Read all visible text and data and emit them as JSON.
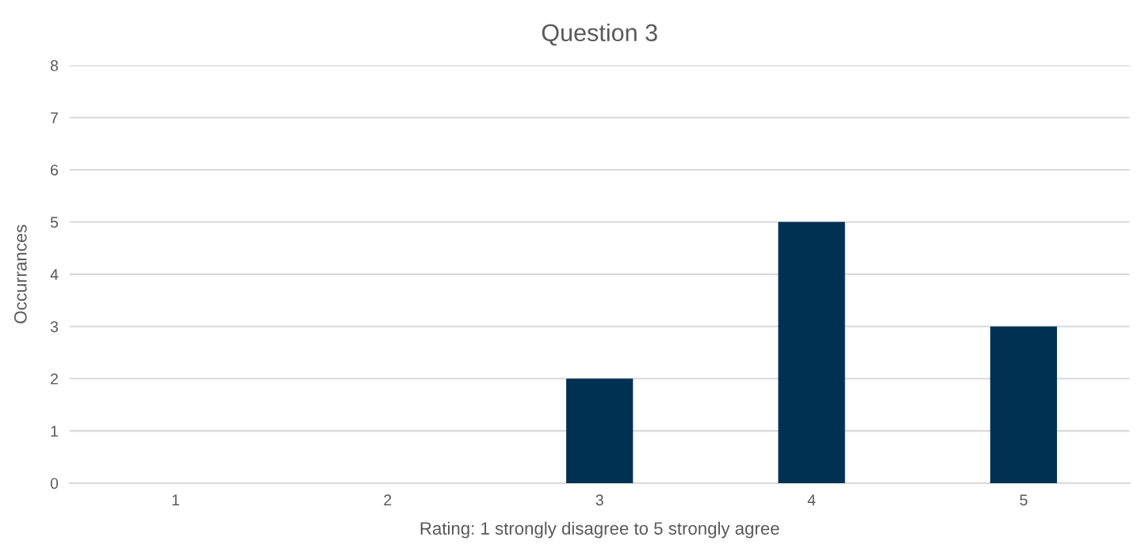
{
  "chart_data": {
    "type": "bar",
    "title": "Question 3",
    "xlabel": "Rating: 1 strongly disagree to 5 strongly agree",
    "ylabel": "Occurrances",
    "categories": [
      "1",
      "2",
      "3",
      "4",
      "5"
    ],
    "values": [
      0,
      0,
      2,
      5,
      3
    ],
    "color": "#003153",
    "ylim": [
      0,
      8
    ],
    "yticks": [
      0,
      1,
      2,
      3,
      4,
      5,
      6,
      7,
      8
    ],
    "grid": "y"
  }
}
